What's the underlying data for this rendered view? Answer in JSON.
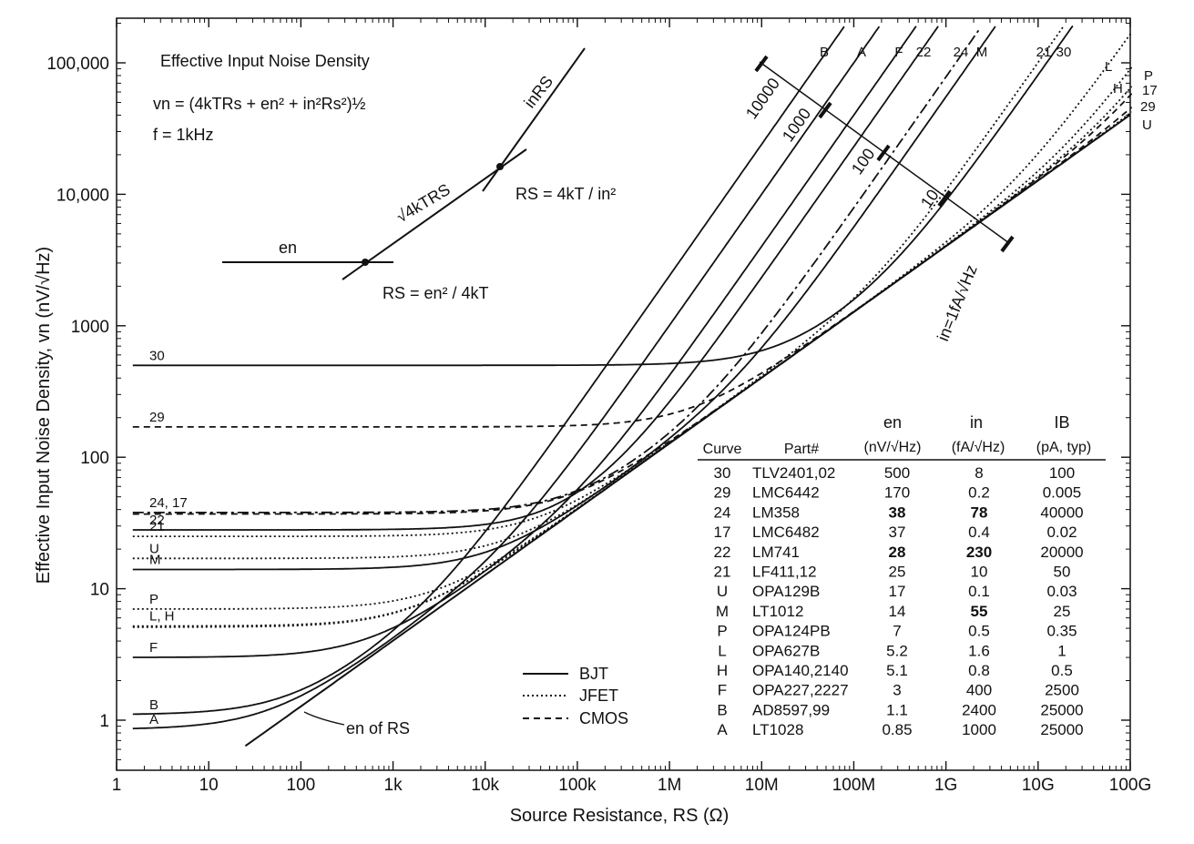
{
  "chart_data": {
    "type": "line",
    "title": "Effective Input Noise Density",
    "formula": "vn = (4kTRs + en² + in²Rs²)½",
    "frequency_label": "f = 1kHz",
    "xlabel": "Source Resistance, RS (Ω)",
    "ylabel": "Effective Input Noise Density, vn (nV/√Hz)",
    "x_scale": "log",
    "y_scale": "log",
    "xlim": [
      1,
      100000000000
    ],
    "ylim": [
      0.5,
      200000
    ],
    "x_ticks": [
      {
        "value": 1,
        "label": "1"
      },
      {
        "value": 10,
        "label": "10"
      },
      {
        "value": 100,
        "label": "100"
      },
      {
        "value": 1000,
        "label": "1k"
      },
      {
        "value": 10000,
        "label": "10k"
      },
      {
        "value": 100000,
        "label": "100k"
      },
      {
        "value": 1000000,
        "label": "1M"
      },
      {
        "value": 10000000,
        "label": "10M"
      },
      {
        "value": 100000000,
        "label": "100M"
      },
      {
        "value": 1000000000,
        "label": "1G"
      },
      {
        "value": 10000000000,
        "label": "10G"
      },
      {
        "value": 100000000000,
        "label": "100G"
      }
    ],
    "y_ticks": [
      {
        "value": 1,
        "label": "1"
      },
      {
        "value": 10,
        "label": "10"
      },
      {
        "value": 100,
        "label": "100"
      },
      {
        "value": 1000,
        "label": "1000"
      },
      {
        "value": 10000,
        "label": "10,000"
      },
      {
        "value": 100000,
        "label": "100,000"
      }
    ],
    "legend": [
      {
        "label": "BJT",
        "style": "solid"
      },
      {
        "label": "JFET",
        "style": "dotted"
      },
      {
        "label": "CMOS",
        "style": "dashed"
      }
    ],
    "annotations": {
      "en_of_rs": "en of RS",
      "in_rs": "inRS",
      "sqrt_term": "√4kTRS",
      "en_label": "en",
      "rs_eq_top": "RS = 4kT / in²",
      "rs_eq_bottom": "RS = en² / 4kT",
      "in_line_label": "in=1fA/√Hz",
      "in_scale_ticks": [
        "10000",
        "1000",
        "100",
        "10"
      ]
    },
    "table": {
      "header_top": [
        "",
        "",
        "en",
        "in",
        "IB"
      ],
      "header_bottom": [
        "Curve",
        "Part#",
        "(nV/√Hz)",
        "(fA/√Hz)",
        "(pA, typ)"
      ],
      "rows": [
        {
          "curve": "30",
          "part": "TLV2401,02",
          "en": "500",
          "in": "8",
          "ib": "100",
          "bold": []
        },
        {
          "curve": "29",
          "part": "LMC6442",
          "en": "170",
          "in": "0.2",
          "ib": "0.005",
          "bold": []
        },
        {
          "curve": "24",
          "part": "LM358",
          "en": "38",
          "in": "78",
          "ib": "40000",
          "bold": [
            "en",
            "in"
          ]
        },
        {
          "curve": "17",
          "part": "LMC6482",
          "en": "37",
          "in": "0.4",
          "ib": "0.02",
          "bold": []
        },
        {
          "curve": "22",
          "part": "LM741",
          "en": "28",
          "in": "230",
          "ib": "20000",
          "bold": [
            "en",
            "in"
          ]
        },
        {
          "curve": "21",
          "part": "LF411,12",
          "en": "25",
          "in": "10",
          "ib": "50",
          "bold": []
        },
        {
          "curve": "U",
          "part": "OPA129B",
          "en": "17",
          "in": "0.1",
          "ib": "0.03",
          "bold": []
        },
        {
          "curve": "M",
          "part": "LT1012",
          "en": "14",
          "in": "55",
          "ib": "25",
          "bold": [
            "in"
          ]
        },
        {
          "curve": "P",
          "part": "OPA124PB",
          "en": "7",
          "in": "0.5",
          "ib": "0.35",
          "bold": []
        },
        {
          "curve": "L",
          "part": "OPA627B",
          "en": "5.2",
          "in": "1.6",
          "ib": "1",
          "bold": []
        },
        {
          "curve": "H",
          "part": "OPA140,2140",
          "en": "5.1",
          "in": "0.8",
          "ib": "0.5",
          "bold": []
        },
        {
          "curve": "F",
          "part": "OPA227,2227",
          "en": "3",
          "in": "400",
          "ib": "2500",
          "bold": []
        },
        {
          "curve": "B",
          "part": "AD8597,99",
          "en": "1.1",
          "in": "2400",
          "ib": "25000",
          "bold": []
        },
        {
          "curve": "A",
          "part": "LT1028",
          "en": "0.85",
          "in": "1000",
          "ib": "25000",
          "bold": []
        }
      ]
    },
    "series": [
      {
        "name": "30",
        "en": 500,
        "in": 8,
        "style": "solid",
        "left_label": "30"
      },
      {
        "name": "29",
        "en": 170,
        "in": 0.2,
        "style": "dashed",
        "left_label": "29"
      },
      {
        "name": "24",
        "en": 38,
        "in": 78,
        "style": "dashdot",
        "left_label": "24, 17"
      },
      {
        "name": "17",
        "en": 37,
        "in": 0.4,
        "style": "dashed",
        "left_label": ""
      },
      {
        "name": "22",
        "en": 28,
        "in": 230,
        "style": "solid",
        "left_label": "22"
      },
      {
        "name": "21",
        "en": 25,
        "in": 10,
        "style": "dotted",
        "left_label": "21"
      },
      {
        "name": "U",
        "en": 17,
        "in": 0.1,
        "style": "dotted",
        "left_label": "U"
      },
      {
        "name": "M",
        "en": 14,
        "in": 55,
        "style": "solid",
        "left_label": "M"
      },
      {
        "name": "P",
        "en": 7,
        "in": 0.5,
        "style": "dotted",
        "left_label": "P"
      },
      {
        "name": "L",
        "en": 5.2,
        "in": 1.6,
        "style": "dotted",
        "left_label": "L, H"
      },
      {
        "name": "H",
        "en": 5.1,
        "in": 0.8,
        "style": "dotted",
        "left_label": ""
      },
      {
        "name": "F",
        "en": 3,
        "in": 400,
        "style": "solid",
        "left_label": "F"
      },
      {
        "name": "B",
        "en": 1.1,
        "in": 2400,
        "style": "solid",
        "left_label": "B"
      },
      {
        "name": "A",
        "en": 0.85,
        "in": 1000,
        "style": "solid",
        "left_label": "A"
      }
    ],
    "top_labels": [
      "B",
      "A",
      "F",
      "22",
      "24",
      "M",
      "21",
      "30"
    ],
    "right_labels": [
      "L",
      "H",
      "P",
      "17",
      "29",
      "U"
    ],
    "grid": false
  }
}
